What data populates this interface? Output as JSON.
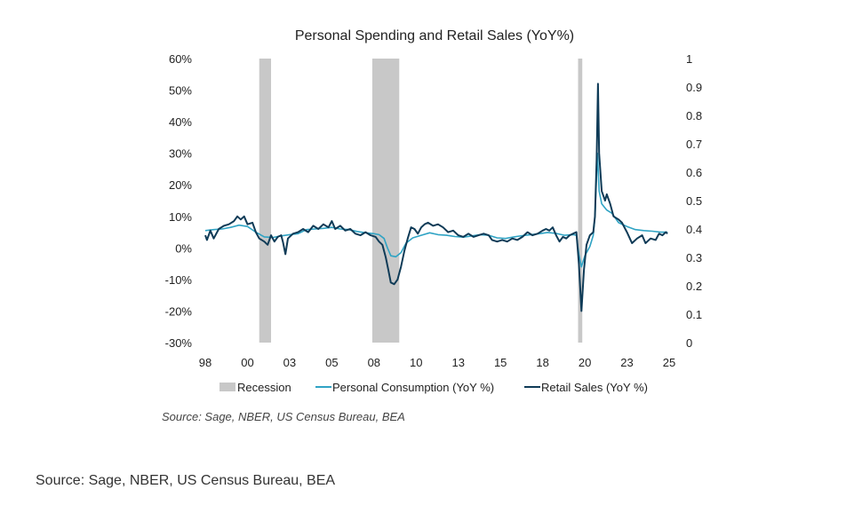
{
  "chart_data": {
    "type": "line",
    "title": "Personal Spending and Retail Sales (YoY%)",
    "x_axis": {
      "min": 1998,
      "max": 2025.5,
      "ticks": [
        {
          "value": 1998,
          "label": "98"
        },
        {
          "value": 2000.5,
          "label": "00"
        },
        {
          "value": 2003,
          "label": "03"
        },
        {
          "value": 2005.5,
          "label": "05"
        },
        {
          "value": 2008,
          "label": "08"
        },
        {
          "value": 2010.5,
          "label": "10"
        },
        {
          "value": 2013,
          "label": "13"
        },
        {
          "value": 2015.5,
          "label": "15"
        },
        {
          "value": 2018,
          "label": "18"
        },
        {
          "value": 2020.5,
          "label": "20"
        },
        {
          "value": 2023,
          "label": "23"
        },
        {
          "value": 2025.5,
          "label": "25"
        }
      ]
    },
    "y_left": {
      "min": -30,
      "max": 60,
      "ticks": [
        {
          "value": 60,
          "label": "60%"
        },
        {
          "value": 50,
          "label": "50%"
        },
        {
          "value": 40,
          "label": "40%"
        },
        {
          "value": 30,
          "label": "30%"
        },
        {
          "value": 20,
          "label": "20%"
        },
        {
          "value": 10,
          "label": "10%"
        },
        {
          "value": 0,
          "label": "0%"
        },
        {
          "value": -10,
          "label": "-10%"
        },
        {
          "value": -20,
          "label": "-20%"
        },
        {
          "value": -30,
          "label": "-30%"
        }
      ]
    },
    "y_right": {
      "min": 0,
      "max": 1,
      "ticks": [
        {
          "value": 1,
          "label": "1"
        },
        {
          "value": 0.9,
          "label": "0.9"
        },
        {
          "value": 0.8,
          "label": "0.8"
        },
        {
          "value": 0.7,
          "label": "0.7"
        },
        {
          "value": 0.6,
          "label": "0.6"
        },
        {
          "value": 0.5,
          "label": "0.5"
        },
        {
          "value": 0.4,
          "label": "0.4"
        },
        {
          "value": 0.3,
          "label": "0.3"
        },
        {
          "value": 0.2,
          "label": "0.2"
        },
        {
          "value": 0.1,
          "label": "0.1"
        },
        {
          "value": 0,
          "label": "0"
        }
      ]
    },
    "recessions": [
      {
        "start": 2001.2,
        "end": 2001.9
      },
      {
        "start": 2007.9,
        "end": 2009.5
      },
      {
        "start": 2020.1,
        "end": 2020.35
      }
    ],
    "legend": {
      "placement": "bottom",
      "items": [
        {
          "label": "Recession",
          "kind": "box",
          "color": "#c8c8c8"
        },
        {
          "label": "Personal Consumption (YoY %)",
          "kind": "line",
          "color": "#2fa3c4"
        },
        {
          "label": "Retail Sales (YoY %)",
          "kind": "line",
          "color": "#0f3b57"
        }
      ]
    },
    "series": [
      {
        "name": "Personal Consumption (YoY %)",
        "color": "#2fa3c4",
        "points": [
          [
            1998.0,
            5.5
          ],
          [
            1998.5,
            5.8
          ],
          [
            1999.0,
            6.0
          ],
          [
            1999.5,
            6.5
          ],
          [
            2000.0,
            7.2
          ],
          [
            2000.5,
            6.8
          ],
          [
            2001.0,
            5.0
          ],
          [
            2001.5,
            3.5
          ],
          [
            2002.0,
            3.3
          ],
          [
            2002.5,
            3.8
          ],
          [
            2003.0,
            4.2
          ],
          [
            2003.5,
            4.5
          ],
          [
            2004.0,
            5.8
          ],
          [
            2004.5,
            6.0
          ],
          [
            2005.0,
            6.2
          ],
          [
            2005.5,
            6.5
          ],
          [
            2006.0,
            6.0
          ],
          [
            2006.5,
            5.8
          ],
          [
            2007.0,
            5.2
          ],
          [
            2007.5,
            4.8
          ],
          [
            2008.0,
            4.5
          ],
          [
            2008.3,
            4.2
          ],
          [
            2008.6,
            3.0
          ],
          [
            2008.8,
            0.0
          ],
          [
            2009.0,
            -2.5
          ],
          [
            2009.3,
            -2.8
          ],
          [
            2009.6,
            -1.5
          ],
          [
            2009.9,
            1.5
          ],
          [
            2010.3,
            3.2
          ],
          [
            2010.8,
            4.0
          ],
          [
            2011.3,
            4.8
          ],
          [
            2011.8,
            4.2
          ],
          [
            2012.3,
            4.0
          ],
          [
            2012.8,
            3.6
          ],
          [
            2013.3,
            3.4
          ],
          [
            2013.8,
            3.8
          ],
          [
            2014.3,
            4.2
          ],
          [
            2014.8,
            4.0
          ],
          [
            2015.3,
            3.2
          ],
          [
            2015.8,
            3.0
          ],
          [
            2016.3,
            3.5
          ],
          [
            2016.8,
            3.9
          ],
          [
            2017.3,
            4.2
          ],
          [
            2017.8,
            4.5
          ],
          [
            2018.3,
            4.9
          ],
          [
            2018.8,
            4.6
          ],
          [
            2019.3,
            4.0
          ],
          [
            2019.8,
            4.2
          ],
          [
            2020.0,
            4.0
          ],
          [
            2020.15,
            -2.0
          ],
          [
            2020.3,
            -6.0
          ],
          [
            2020.5,
            -2.5
          ],
          [
            2020.8,
            0.5
          ],
          [
            2021.0,
            4.0
          ],
          [
            2021.1,
            10.0
          ],
          [
            2021.25,
            30.0
          ],
          [
            2021.35,
            18.0
          ],
          [
            2021.5,
            14.0
          ],
          [
            2021.8,
            12.0
          ],
          [
            2022.1,
            11.0
          ],
          [
            2022.5,
            8.0
          ],
          [
            2023.0,
            6.8
          ],
          [
            2023.5,
            5.8
          ],
          [
            2024.0,
            5.5
          ],
          [
            2024.5,
            5.3
          ],
          [
            2025.0,
            5.0
          ],
          [
            2025.4,
            5.0
          ]
        ]
      },
      {
        "name": "Retail Sales (YoY %)",
        "color": "#0f3b57",
        "points": [
          [
            1998.0,
            4.0
          ],
          [
            1998.1,
            2.5
          ],
          [
            1998.3,
            5.5
          ],
          [
            1998.5,
            3.0
          ],
          [
            1998.8,
            6.0
          ],
          [
            1999.1,
            7.0
          ],
          [
            1999.4,
            7.5
          ],
          [
            1999.7,
            8.5
          ],
          [
            1999.9,
            10.0
          ],
          [
            2000.1,
            9.0
          ],
          [
            2000.3,
            10.0
          ],
          [
            2000.5,
            7.5
          ],
          [
            2000.8,
            8.0
          ],
          [
            2001.0,
            5.0
          ],
          [
            2001.2,
            3.0
          ],
          [
            2001.5,
            2.0
          ],
          [
            2001.7,
            1.0
          ],
          [
            2001.9,
            4.0
          ],
          [
            2002.1,
            2.0
          ],
          [
            2002.3,
            3.5
          ],
          [
            2002.5,
            4.0
          ],
          [
            2002.6,
            2.0
          ],
          [
            2002.75,
            -2.0
          ],
          [
            2002.9,
            3.0
          ],
          [
            2003.2,
            4.5
          ],
          [
            2003.5,
            5.0
          ],
          [
            2003.8,
            6.0
          ],
          [
            2004.1,
            5.0
          ],
          [
            2004.4,
            7.0
          ],
          [
            2004.7,
            6.0
          ],
          [
            2005.0,
            7.5
          ],
          [
            2005.3,
            6.5
          ],
          [
            2005.5,
            8.5
          ],
          [
            2005.7,
            6.0
          ],
          [
            2006.0,
            7.0
          ],
          [
            2006.3,
            5.5
          ],
          [
            2006.6,
            6.0
          ],
          [
            2006.9,
            4.5
          ],
          [
            2007.2,
            4.0
          ],
          [
            2007.5,
            5.0
          ],
          [
            2007.8,
            4.0
          ],
          [
            2008.1,
            3.5
          ],
          [
            2008.3,
            2.0
          ],
          [
            2008.5,
            1.0
          ],
          [
            2008.7,
            -3.0
          ],
          [
            2008.85,
            -7.0
          ],
          [
            2009.0,
            -11.0
          ],
          [
            2009.2,
            -11.5
          ],
          [
            2009.4,
            -10.0
          ],
          [
            2009.6,
            -6.0
          ],
          [
            2009.8,
            -1.0
          ],
          [
            2010.0,
            3.0
          ],
          [
            2010.2,
            6.5
          ],
          [
            2010.4,
            6.0
          ],
          [
            2010.6,
            4.5
          ],
          [
            2010.8,
            6.5
          ],
          [
            2011.0,
            7.5
          ],
          [
            2011.2,
            8.0
          ],
          [
            2011.5,
            7.0
          ],
          [
            2011.8,
            7.5
          ],
          [
            2012.1,
            6.5
          ],
          [
            2012.4,
            5.0
          ],
          [
            2012.7,
            5.5
          ],
          [
            2013.0,
            4.0
          ],
          [
            2013.3,
            3.5
          ],
          [
            2013.6,
            4.5
          ],
          [
            2013.9,
            3.5
          ],
          [
            2014.2,
            4.0
          ],
          [
            2014.5,
            4.5
          ],
          [
            2014.8,
            4.0
          ],
          [
            2015.0,
            2.5
          ],
          [
            2015.3,
            2.0
          ],
          [
            2015.6,
            2.5
          ],
          [
            2015.9,
            2.0
          ],
          [
            2016.2,
            3.0
          ],
          [
            2016.5,
            2.5
          ],
          [
            2016.8,
            3.5
          ],
          [
            2017.1,
            5.0
          ],
          [
            2017.4,
            4.0
          ],
          [
            2017.7,
            4.5
          ],
          [
            2018.0,
            5.5
          ],
          [
            2018.2,
            6.0
          ],
          [
            2018.4,
            5.5
          ],
          [
            2018.6,
            6.5
          ],
          [
            2018.8,
            4.0
          ],
          [
            2019.0,
            2.0
          ],
          [
            2019.2,
            3.5
          ],
          [
            2019.4,
            3.0
          ],
          [
            2019.6,
            4.0
          ],
          [
            2019.8,
            4.5
          ],
          [
            2020.0,
            5.0
          ],
          [
            2020.15,
            -5.0
          ],
          [
            2020.3,
            -20.0
          ],
          [
            2020.45,
            -7.0
          ],
          [
            2020.6,
            1.0
          ],
          [
            2020.8,
            4.0
          ],
          [
            2021.0,
            5.0
          ],
          [
            2021.1,
            10.0
          ],
          [
            2021.2,
            28.0
          ],
          [
            2021.28,
            52.0
          ],
          [
            2021.35,
            30.0
          ],
          [
            2021.5,
            18.0
          ],
          [
            2021.7,
            15.0
          ],
          [
            2021.8,
            17.0
          ],
          [
            2022.0,
            14.0
          ],
          [
            2022.2,
            10.0
          ],
          [
            2022.5,
            9.0
          ],
          [
            2022.7,
            8.0
          ],
          [
            2023.0,
            5.0
          ],
          [
            2023.3,
            1.5
          ],
          [
            2023.6,
            3.0
          ],
          [
            2023.9,
            4.0
          ],
          [
            2024.1,
            1.5
          ],
          [
            2024.4,
            3.0
          ],
          [
            2024.7,
            2.5
          ],
          [
            2024.9,
            4.5
          ],
          [
            2025.1,
            4.0
          ],
          [
            2025.3,
            5.0
          ],
          [
            2025.4,
            4.5
          ]
        ]
      }
    ]
  },
  "source_in_chart": "Source: Sage, NBER, US Census Bureau, BEA",
  "page_caption": "Source: Sage, NBER, US Census Bureau, BEA"
}
